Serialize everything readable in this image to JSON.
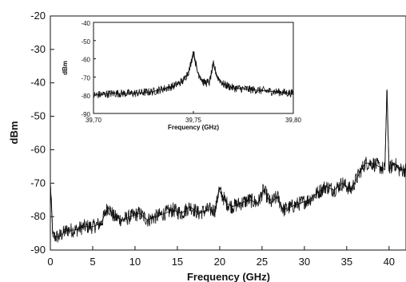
{
  "chart_data": [
    {
      "type": "line",
      "title": "",
      "xlabel": "Frequency (GHz)",
      "ylabel": "dBm",
      "xlim": [
        0,
        42
      ],
      "ylim": [
        -90,
        -20
      ],
      "x_ticks": [
        "0",
        "5",
        "10",
        "15",
        "20",
        "25",
        "30",
        "35",
        "40"
      ],
      "y_ticks": [
        "-20",
        "-30",
        "-40",
        "-50",
        "-60",
        "-70",
        "-80",
        "-90"
      ],
      "grid": false,
      "color": "#111111",
      "series": [
        {
          "x": [
            0,
            0.3,
            1,
            2,
            3,
            4,
            5,
            6,
            6.8,
            7.5,
            8.5,
            9.5,
            10.5,
            11.5,
            12.5,
            13.5,
            14.5,
            15.5,
            16.5,
            17.5,
            18.5,
            19.5,
            19.9,
            20.8,
            21.5,
            22.5,
            23.5,
            24.5,
            25.2,
            26,
            26.8,
            27.5,
            28.5,
            29.5,
            30.5,
            31.5,
            32.5,
            33.5,
            34.5,
            35.5,
            36.5,
            37.2,
            38,
            38.8,
            39.5,
            39.75,
            40,
            40.6,
            41.2,
            42
          ],
          "y": [
            -70,
            -86,
            -86,
            -84,
            -84,
            -83,
            -83,
            -82,
            -77,
            -80,
            -81,
            -80,
            -79,
            -81,
            -80,
            -79,
            -78,
            -79,
            -77,
            -79,
            -78,
            -78,
            -72,
            -76,
            -77,
            -76,
            -75,
            -76,
            -72,
            -76,
            -74,
            -78,
            -77,
            -76,
            -75,
            -73,
            -71,
            -72,
            -70,
            -72,
            -67,
            -64,
            -64,
            -65,
            -66,
            -42,
            -66,
            -64,
            -66,
            -66
          ]
        }
      ]
    },
    {
      "type": "line",
      "title": "",
      "xlabel": "Frequency (GHz)",
      "ylabel": "dBm",
      "xlim": [
        39.7,
        39.8
      ],
      "ylim": [
        -90,
        -40
      ],
      "x_ticks": [
        "39,70",
        "39,75",
        "39,80"
      ],
      "y_ticks": [
        "-40",
        "-50",
        "-60",
        "-70",
        "-80",
        "-90"
      ],
      "grid": false,
      "color": "#111111",
      "series": [
        {
          "x": [
            39.7,
            39.71,
            39.72,
            39.73,
            39.74,
            39.745,
            39.748,
            39.75,
            39.752,
            39.755,
            39.758,
            39.76,
            39.762,
            39.765,
            39.77,
            39.78,
            39.79,
            39.8
          ],
          "y": [
            -80,
            -79,
            -79,
            -78,
            -75,
            -72,
            -66,
            -56,
            -67,
            -73,
            -73,
            -63,
            -70,
            -74,
            -76,
            -77,
            -78,
            -79
          ]
        }
      ]
    }
  ]
}
